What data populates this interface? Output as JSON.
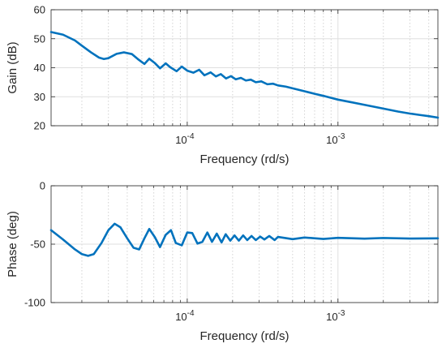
{
  "colors": {
    "line": "#0072BD",
    "axes": "#262626",
    "grid": "#dfdfdf",
    "minor_grid": "#e9e9e9",
    "background": "#ffffff"
  },
  "chart_data": [
    {
      "type": "line",
      "xlabel": "Frequency (rd/s)",
      "ylabel": "Gain (dB)",
      "xscale": "log",
      "xlim": [
        1.25e-05,
        0.0046
      ],
      "ylim": [
        20,
        60
      ],
      "yticks": [
        "20",
        "30",
        "40",
        "50",
        "60"
      ],
      "xticks": [
        {
          "value": 0.0001,
          "base": "10",
          "exp": "-4"
        },
        {
          "value": 0.001,
          "base": "10",
          "exp": "-3"
        }
      ],
      "grid": true,
      "series": [
        {
          "x": [
            1.25e-05,
            1.5e-05,
            1.8e-05,
            2e-05,
            2.3e-05,
            2.6e-05,
            2.8e-05,
            3e-05,
            3.4e-05,
            3.8e-05,
            4.3e-05,
            4.7e-05,
            5.2e-05,
            5.6e-05,
            6.1e-05,
            6.6e-05,
            7.2e-05,
            7.7e-05,
            8.5e-05,
            9.2e-05,
            0.0001,
            0.00011,
            0.00012,
            0.00013,
            0.000143,
            0.000155,
            0.000167,
            0.000181,
            0.000195,
            0.00021,
            0.000227,
            0.000245,
            0.000264,
            0.000285,
            0.00031,
            0.00034,
            0.00037,
            0.0004,
            0.00045,
            0.0005,
            0.0006,
            0.0007,
            0.0008,
            0.0009,
            0.001,
            0.0012,
            0.0015,
            0.002,
            0.0025,
            0.003,
            0.0035,
            0.004,
            0.0046
          ],
          "y": [
            52.3,
            51.4,
            49.4,
            47.6,
            45.3,
            43.5,
            43.0,
            43.3,
            44.8,
            45.3,
            44.7,
            43.0,
            41.3,
            43.1,
            41.6,
            39.8,
            41.5,
            40.2,
            38.8,
            40.4,
            39.0,
            38.3,
            39.3,
            37.4,
            38.4,
            37.0,
            37.8,
            36.3,
            37.1,
            36.0,
            36.5,
            35.6,
            35.9,
            35.0,
            35.3,
            34.3,
            34.5,
            33.9,
            33.5,
            32.9,
            31.9,
            31.0,
            30.3,
            29.6,
            29.0,
            28.2,
            27.2,
            25.9,
            24.9,
            24.2,
            23.7,
            23.3,
            22.8
          ]
        }
      ]
    },
    {
      "type": "line",
      "xlabel": "Frequency (rd/s)",
      "ylabel": "Phase (deg)",
      "xscale": "log",
      "xlim": [
        1.25e-05,
        0.0046
      ],
      "ylim": [
        -100,
        0
      ],
      "yticks": [
        "-100",
        "-50",
        "0"
      ],
      "xticks": [
        {
          "value": 0.0001,
          "base": "10",
          "exp": "-4"
        },
        {
          "value": 0.001,
          "base": "10",
          "exp": "-3"
        }
      ],
      "grid": true,
      "series": [
        {
          "x": [
            1.25e-05,
            1.5e-05,
            1.8e-05,
            2e-05,
            2.2e-05,
            2.4e-05,
            2.7e-05,
            3e-05,
            3.3e-05,
            3.6e-05,
            4e-05,
            4.4e-05,
            4.8e-05,
            5.2e-05,
            5.6e-05,
            6.1e-05,
            6.6e-05,
            7.2e-05,
            7.8e-05,
            8.4e-05,
            9.2e-05,
            0.0001,
            0.000108,
            0.000117,
            0.000126,
            0.000136,
            0.000146,
            0.000157,
            0.000169,
            0.00018,
            0.000193,
            0.000206,
            0.00022,
            0.000235,
            0.00025,
            0.000267,
            0.000285,
            0.000305,
            0.000325,
            0.00035,
            0.00038,
            0.0004,
            0.0005,
            0.0006,
            0.0008,
            0.001,
            0.0015,
            0.002,
            0.003,
            0.0046
          ],
          "y": [
            -38.0,
            -46.0,
            -54.5,
            -58.5,
            -60.0,
            -58.5,
            -49.0,
            -38.0,
            -32.5,
            -35.5,
            -45.0,
            -53.0,
            -54.5,
            -45.0,
            -37.0,
            -44.0,
            -52.5,
            -42.0,
            -38.0,
            -49.0,
            -51.0,
            -40.0,
            -40.5,
            -49.5,
            -48.0,
            -40.0,
            -48.0,
            -41.0,
            -48.5,
            -41.5,
            -47.0,
            -42.5,
            -47.0,
            -42.5,
            -46.5,
            -43.0,
            -46.5,
            -43.5,
            -46.0,
            -43.0,
            -46.5,
            -43.8,
            -45.7,
            -44.3,
            -45.5,
            -44.6,
            -45.3,
            -44.7,
            -45.2,
            -45.0
          ]
        }
      ]
    }
  ]
}
